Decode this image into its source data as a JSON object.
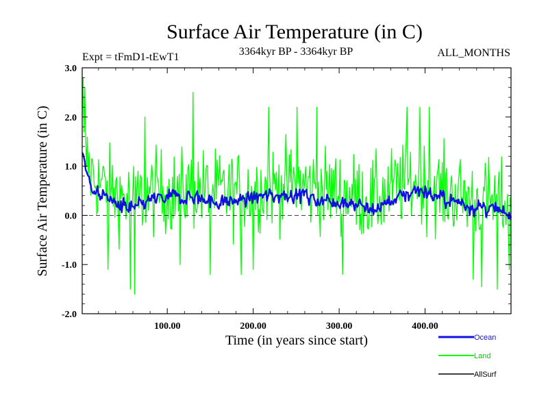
{
  "chart_data": {
    "type": "line",
    "title": "Surface Air Temperature (in C)",
    "subtitle_left": "Expt = tFmD1-tEwT1",
    "subtitle_center": "3364kyr BP - 3364kyr BP",
    "subtitle_right": "ALL_MONTHS",
    "xlabel": "Time (in years since start)",
    "ylabel": "Surface Air Temperature (in C)",
    "xlim": [
      1,
      500
    ],
    "ylim": [
      -2.0,
      3.0
    ],
    "x_ticks": [
      {
        "value": 100,
        "label": "100.00"
      },
      {
        "value": 200,
        "label": "200.00"
      },
      {
        "value": 300,
        "label": "300.00"
      },
      {
        "value": 400,
        "label": "400.00"
      }
    ],
    "y_ticks": [
      {
        "value": -2.0,
        "label": "-2.0"
      },
      {
        "value": -1.0,
        "label": "-1.0"
      },
      {
        "value": 0.0,
        "label": "0.0"
      },
      {
        "value": 1.0,
        "label": "1.0"
      },
      {
        "value": 2.0,
        "label": "2.0"
      },
      {
        "value": 3.0,
        "label": "3.0"
      }
    ],
    "zero_line": true,
    "x_step_years": 1,
    "series": [
      {
        "name": "Land",
        "color": "#00ff00",
        "anchor_x": [
          1,
          5,
          10,
          20,
          35,
          50,
          60,
          70,
          90,
          110,
          130,
          150,
          170,
          190,
          210,
          230,
          250,
          270,
          290,
          310,
          330,
          340,
          355,
          370,
          390,
          410,
          430,
          450,
          470,
          485,
          500
        ],
        "anchor_mean": [
          1.6,
          1.2,
          0.9,
          0.65,
          0.5,
          0.35,
          0.3,
          0.35,
          0.5,
          0.45,
          0.55,
          0.5,
          0.45,
          0.5,
          0.55,
          0.6,
          0.65,
          0.55,
          0.5,
          0.45,
          0.35,
          0.3,
          0.45,
          0.6,
          0.7,
          0.55,
          0.45,
          0.35,
          0.3,
          0.25,
          0.2
        ],
        "noise_amplitude": 0.6,
        "spikes": [
          {
            "x": 2,
            "y": 2.8
          },
          {
            "x": 4,
            "y": 2.6
          },
          {
            "x": 62,
            "y": -1.6
          },
          {
            "x": 57,
            "y": -1.5
          },
          {
            "x": 130,
            "y": 2.5
          },
          {
            "x": 74,
            "y": 2.0
          },
          {
            "x": 150,
            "y": -1.2
          },
          {
            "x": 186,
            "y": -1.2
          },
          {
            "x": 218,
            "y": 2.2
          },
          {
            "x": 251,
            "y": 2.2
          },
          {
            "x": 274,
            "y": 2.2
          },
          {
            "x": 379,
            "y": 2.2
          },
          {
            "x": 394,
            "y": 2.2
          },
          {
            "x": 405,
            "y": 2.2
          },
          {
            "x": 466,
            "y": -1.45
          },
          {
            "x": 456,
            "y": -1.3
          },
          {
            "x": 484,
            "y": -1.5
          },
          {
            "x": 498,
            "y": -1.1
          },
          {
            "x": 304,
            "y": -1.2
          },
          {
            "x": 31,
            "y": -1.1
          },
          {
            "x": 200,
            "y": -1.1
          },
          {
            "x": 115,
            "y": -1.0
          }
        ]
      },
      {
        "name": "Ocean",
        "color": "#1010e0",
        "anchor_x": [
          1,
          3,
          8,
          15,
          25,
          40,
          55,
          65,
          80,
          100,
          120,
          140,
          160,
          180,
          200,
          220,
          240,
          260,
          280,
          300,
          320,
          335,
          345,
          360,
          380,
          395,
          410,
          425,
          445,
          465,
          480,
          500
        ],
        "anchor_mean": [
          1.25,
          1.15,
          0.75,
          0.5,
          0.4,
          0.25,
          0.1,
          0.15,
          0.3,
          0.35,
          0.4,
          0.35,
          0.25,
          0.3,
          0.35,
          0.4,
          0.45,
          0.4,
          0.3,
          0.3,
          0.25,
          0.1,
          0.15,
          0.3,
          0.45,
          0.55,
          0.4,
          0.3,
          0.25,
          0.15,
          0.1,
          -0.05
        ],
        "noise_amplitude": 0.17
      },
      {
        "name": "AllSurf",
        "color": "#000000",
        "visible_in_plot": false
      }
    ],
    "legend": {
      "position": "bottom-right",
      "entries": [
        {
          "label": "Ocean",
          "color": "#1010e0"
        },
        {
          "label": "Land",
          "color": "#00ff00"
        },
        {
          "label": "AllSurf",
          "color": "#000000"
        }
      ]
    }
  }
}
